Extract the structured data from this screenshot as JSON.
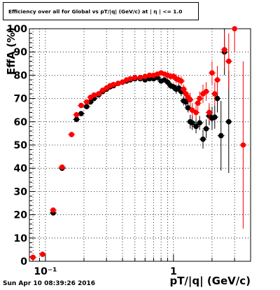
{
  "chart_data": {
    "type": "scatter",
    "title": "Efficiency over all for Global vs pT/|q| (GeV/c) at | η | <= 1.0",
    "xlabel": "pT/|q| (GeV/c)",
    "ylabel": "EffA (%)",
    "xscale": "log",
    "xlim": [
      0.075,
      4.0
    ],
    "ylim": [
      0,
      100
    ],
    "grid": true,
    "x_ticks": [
      {
        "v": 0.1,
        "label": "10⁻¹"
      },
      {
        "v": 1,
        "label": "1"
      }
    ],
    "y_ticks": [
      0,
      10,
      20,
      30,
      40,
      50,
      60,
      70,
      80,
      90,
      100
    ],
    "series": [
      {
        "color": "#000000",
        "points": [
          [
            0.115,
            20.8,
            0.5
          ],
          [
            0.135,
            40.0,
            1
          ],
          [
            0.175,
            61.0,
            1
          ],
          [
            0.19,
            63.5,
            1
          ],
          [
            0.21,
            66.5,
            1
          ],
          [
            0.225,
            68.5,
            1
          ],
          [
            0.24,
            70.0,
            1
          ],
          [
            0.26,
            71.5,
            1
          ],
          [
            0.28,
            73.0,
            1
          ],
          [
            0.3,
            74.0,
            1
          ],
          [
            0.32,
            75.0,
            1
          ],
          [
            0.34,
            75.5,
            1
          ],
          [
            0.37,
            76.5,
            1
          ],
          [
            0.4,
            77.0,
            1
          ],
          [
            0.43,
            77.5,
            1
          ],
          [
            0.46,
            78.0,
            1
          ],
          [
            0.5,
            78.5,
            1
          ],
          [
            0.55,
            78.5,
            1
          ],
          [
            0.6,
            78.0,
            1
          ],
          [
            0.65,
            78.5,
            1
          ],
          [
            0.7,
            78.5,
            1
          ],
          [
            0.75,
            79.0,
            1
          ],
          [
            0.8,
            77.5,
            1
          ],
          [
            0.85,
            78.0,
            1
          ],
          [
            0.9,
            77.0,
            1.5
          ],
          [
            0.95,
            75.5,
            1.5
          ],
          [
            1.0,
            75.0,
            1.5
          ],
          [
            1.05,
            74.0,
            2
          ],
          [
            1.1,
            74.5,
            2
          ],
          [
            1.15,
            73.0,
            2
          ],
          [
            1.2,
            69.0,
            2
          ],
          [
            1.25,
            68.5,
            2
          ],
          [
            1.3,
            66.0,
            2
          ],
          [
            1.35,
            60.0,
            3
          ],
          [
            1.4,
            59.5,
            3
          ],
          [
            1.5,
            58.0,
            3
          ],
          [
            1.6,
            59.5,
            3
          ],
          [
            1.7,
            52.5,
            4
          ],
          [
            1.8,
            57.0,
            4
          ],
          [
            1.9,
            62.5,
            4
          ],
          [
            2.0,
            61.5,
            5
          ],
          [
            2.1,
            62.0,
            5
          ],
          [
            2.2,
            70.0,
            6
          ],
          [
            2.35,
            54.0,
            15
          ],
          [
            2.5,
            90.0,
            10
          ],
          [
            2.7,
            60.0,
            22
          ]
        ]
      },
      {
        "color": "#ff0000",
        "points": [
          [
            0.08,
            1.7,
            0.5
          ],
          [
            0.095,
            3.0,
            0.5
          ],
          [
            0.115,
            22.0,
            0.5
          ],
          [
            0.135,
            40.5,
            1
          ],
          [
            0.16,
            54.5,
            1
          ],
          [
            0.175,
            63.0,
            1
          ],
          [
            0.19,
            67.0,
            1
          ],
          [
            0.21,
            68.5,
            1
          ],
          [
            0.225,
            70.5,
            1
          ],
          [
            0.24,
            71.5,
            1
          ],
          [
            0.26,
            72.0,
            1
          ],
          [
            0.28,
            73.5,
            1
          ],
          [
            0.3,
            74.5,
            1
          ],
          [
            0.32,
            75.5,
            1
          ],
          [
            0.34,
            76.0,
            1
          ],
          [
            0.37,
            76.5,
            1
          ],
          [
            0.4,
            77.0,
            1
          ],
          [
            0.43,
            78.0,
            1
          ],
          [
            0.46,
            78.5,
            1
          ],
          [
            0.5,
            79.0,
            1
          ],
          [
            0.55,
            79.0,
            1
          ],
          [
            0.6,
            79.5,
            1
          ],
          [
            0.65,
            80.0,
            1
          ],
          [
            0.7,
            80.0,
            1
          ],
          [
            0.75,
            80.5,
            1
          ],
          [
            0.8,
            81.0,
            1
          ],
          [
            0.85,
            80.5,
            1
          ],
          [
            0.9,
            80.0,
            1.5
          ],
          [
            0.95,
            79.5,
            1.5
          ],
          [
            1.0,
            79.5,
            1.5
          ],
          [
            1.05,
            78.5,
            2
          ],
          [
            1.1,
            78.0,
            2
          ],
          [
            1.15,
            77.5,
            2
          ],
          [
            1.2,
            74.0,
            2
          ],
          [
            1.25,
            72.0,
            2
          ],
          [
            1.3,
            70.5,
            2
          ],
          [
            1.35,
            69.5,
            3
          ],
          [
            1.4,
            65.0,
            3
          ],
          [
            1.5,
            64.0,
            3
          ],
          [
            1.55,
            68.0,
            3
          ],
          [
            1.6,
            70.0,
            3
          ],
          [
            1.7,
            72.0,
            4
          ],
          [
            1.8,
            73.0,
            4
          ],
          [
            1.9,
            64.0,
            4
          ],
          [
            2.0,
            81.0,
            5
          ],
          [
            2.1,
            72.0,
            5
          ],
          [
            2.2,
            78.0,
            6
          ],
          [
            2.5,
            91.0,
            8
          ],
          [
            2.7,
            86.0,
            12
          ],
          [
            3.0,
            100.0,
            10
          ],
          [
            3.5,
            50.0,
            36
          ]
        ]
      }
    ]
  },
  "footer": {
    "timestamp": "Sun Apr 10 08:39:26 2016"
  }
}
